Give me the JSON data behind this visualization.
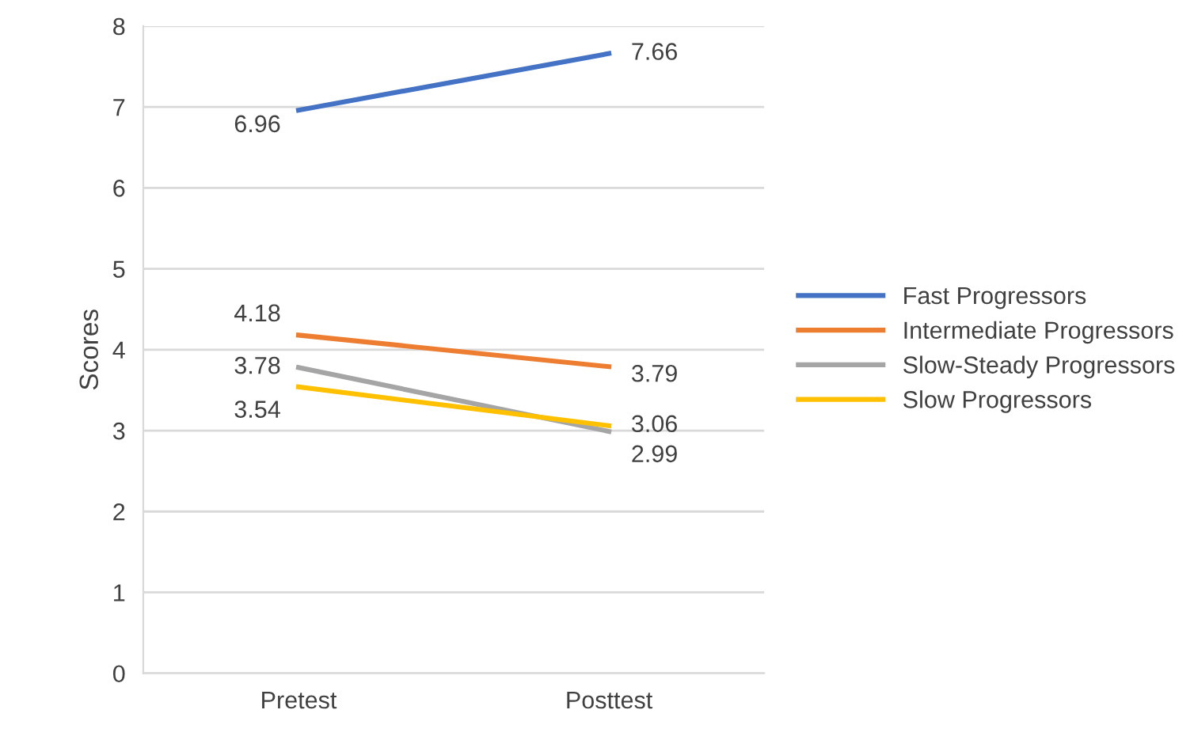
{
  "chart_data": {
    "type": "line",
    "ylabel": "Scores",
    "categories": [
      "Pretest",
      "Posttest"
    ],
    "series": [
      {
        "name": "Fast Progressors",
        "color": "#4472c4",
        "values": [
          6.96,
          7.66
        ]
      },
      {
        "name": "Intermediate Progressors",
        "color": "#ed7d31",
        "values": [
          4.18,
          3.79
        ]
      },
      {
        "name": "Slow-Steady Progressors",
        "color": "#a5a5a5",
        "values": [
          3.78,
          2.99
        ]
      },
      {
        "name": "Slow Progressors",
        "color": "#ffc000",
        "values": [
          3.54,
          3.06
        ]
      }
    ],
    "ylim": [
      0,
      8
    ],
    "yticks": [
      0,
      1,
      2,
      3,
      4,
      5,
      6,
      7,
      8
    ],
    "grid": "y",
    "legend": "right",
    "data_labels": true,
    "marker": "none",
    "line_style": "solid"
  }
}
